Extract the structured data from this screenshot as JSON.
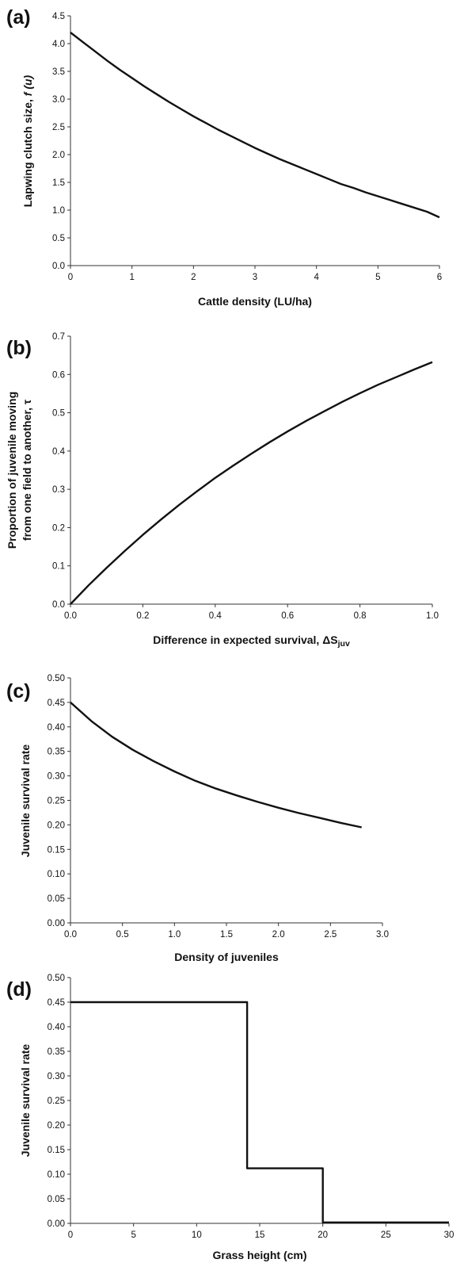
{
  "chart_data": [
    {
      "id": "a",
      "type": "line",
      "panel_label": "(a)",
      "xlabel": "Cattle density (LU/ha)",
      "ylabel_parts": [
        "Lapwing clutch size, ",
        "f (u)"
      ],
      "xlim": [
        0,
        6
      ],
      "ylim": [
        0,
        4.5
      ],
      "xticks": [
        0,
        1,
        2,
        3,
        4,
        5,
        6
      ],
      "xtick_labels": [
        "0",
        "1",
        "2",
        "3",
        "4",
        "5",
        "6"
      ],
      "yticks": [
        0,
        0.5,
        1,
        1.5,
        2,
        2.5,
        3,
        3.5,
        4,
        4.5
      ],
      "ytick_labels": [
        "0.0",
        "0.5",
        "1.0",
        "1.5",
        "2.0",
        "2.5",
        "3.0",
        "3.5",
        "4.0",
        "4.5"
      ],
      "grid": false,
      "step": false,
      "series": [
        {
          "x": [
            0,
            0.2,
            0.4,
            0.6,
            0.8,
            1.0,
            1.2,
            1.4,
            1.6,
            1.8,
            2.0,
            2.2,
            2.4,
            2.6,
            2.8,
            3.0,
            3.2,
            3.4,
            3.6,
            3.8,
            4.0,
            4.2,
            4.4,
            4.6,
            4.8,
            5.0,
            5.2,
            5.4,
            5.6,
            5.8,
            6.0
          ],
          "y": [
            4.2,
            4.03,
            3.86,
            3.69,
            3.53,
            3.38,
            3.23,
            3.09,
            2.95,
            2.82,
            2.69,
            2.57,
            2.45,
            2.34,
            2.23,
            2.12,
            2.02,
            1.92,
            1.83,
            1.74,
            1.65,
            1.56,
            1.47,
            1.4,
            1.32,
            1.25,
            1.18,
            1.11,
            1.04,
            0.97,
            0.87
          ]
        }
      ]
    },
    {
      "id": "b",
      "type": "line",
      "panel_label": "(b)",
      "xlabel_parts": [
        "Difference in expected survival,  ΔS",
        "juv"
      ],
      "ylabel_lines": [
        "Proportion of juvenile moving",
        "from one field to another, τ"
      ],
      "xlim": [
        0,
        1
      ],
      "ylim": [
        0,
        0.7
      ],
      "xticks": [
        0,
        0.2,
        0.4,
        0.6,
        0.8,
        1.0
      ],
      "xtick_labels": [
        "0.0",
        "0.2",
        "0.4",
        "0.6",
        "0.8",
        "1.0"
      ],
      "yticks": [
        0,
        0.1,
        0.2,
        0.3,
        0.4,
        0.5,
        0.6,
        0.7
      ],
      "ytick_labels": [
        "0.0",
        "0.1",
        "0.2",
        "0.3",
        "0.4",
        "0.5",
        "0.6",
        "0.7"
      ],
      "grid": false,
      "step": false,
      "series": [
        {
          "x": [
            0,
            0.05,
            0.1,
            0.15,
            0.2,
            0.25,
            0.3,
            0.35,
            0.4,
            0.45,
            0.5,
            0.55,
            0.6,
            0.65,
            0.7,
            0.75,
            0.8,
            0.85,
            0.9,
            0.95,
            1.0
          ],
          "y": [
            0,
            0.049,
            0.095,
            0.139,
            0.181,
            0.221,
            0.259,
            0.295,
            0.33,
            0.362,
            0.393,
            0.423,
            0.451,
            0.478,
            0.503,
            0.528,
            0.551,
            0.573,
            0.593,
            0.613,
            0.632
          ]
        }
      ]
    },
    {
      "id": "c",
      "type": "line",
      "panel_label": "(c)",
      "xlabel": "Density of juveniles",
      "ylabel": "Juvenile survival rate",
      "xlim": [
        0,
        3
      ],
      "ylim": [
        0,
        0.5
      ],
      "xticks": [
        0,
        0.5,
        1.0,
        1.5,
        2.0,
        2.5,
        3.0
      ],
      "xtick_labels": [
        "0.0",
        "0.5",
        "1.0",
        "1.5",
        "2.0",
        "2.5",
        "3.0"
      ],
      "yticks": [
        0,
        0.05,
        0.1,
        0.15,
        0.2,
        0.25,
        0.3,
        0.35,
        0.4,
        0.45,
        0.5
      ],
      "ytick_labels": [
        "0.00",
        "0.05",
        "0.10",
        "0.15",
        "0.20",
        "0.25",
        "0.30",
        "0.35",
        "0.40",
        "0.45",
        "0.50"
      ],
      "grid": false,
      "step": false,
      "series": [
        {
          "x": [
            0,
            0.2,
            0.4,
            0.6,
            0.8,
            1.0,
            1.2,
            1.4,
            1.6,
            1.8,
            2.0,
            2.2,
            2.4,
            2.6,
            2.8
          ],
          "y": [
            0.45,
            0.412,
            0.38,
            0.353,
            0.33,
            0.309,
            0.29,
            0.274,
            0.26,
            0.247,
            0.235,
            0.224,
            0.214,
            0.204,
            0.195
          ]
        }
      ]
    },
    {
      "id": "d",
      "type": "line",
      "panel_label": "(d)",
      "xlabel": "Grass height (cm)",
      "ylabel": "Juvenile survival rate",
      "xlim": [
        0,
        30
      ],
      "ylim": [
        0,
        0.5
      ],
      "xticks": [
        0,
        5,
        10,
        15,
        20,
        25,
        30
      ],
      "xtick_labels": [
        "0",
        "5",
        "10",
        "15",
        "20",
        "25",
        "30"
      ],
      "yticks": [
        0,
        0.05,
        0.1,
        0.15,
        0.2,
        0.25,
        0.3,
        0.35,
        0.4,
        0.45,
        0.5
      ],
      "ytick_labels": [
        "0.00",
        "0.05",
        "0.10",
        "0.15",
        "0.20",
        "0.25",
        "0.30",
        "0.35",
        "0.40",
        "0.45",
        "0.50"
      ],
      "grid": false,
      "step": true,
      "series": [
        {
          "x": [
            0,
            14,
            14,
            20,
            20,
            30
          ],
          "y": [
            0.45,
            0.45,
            0.112,
            0.112,
            0.002,
            0.002
          ]
        }
      ]
    }
  ]
}
